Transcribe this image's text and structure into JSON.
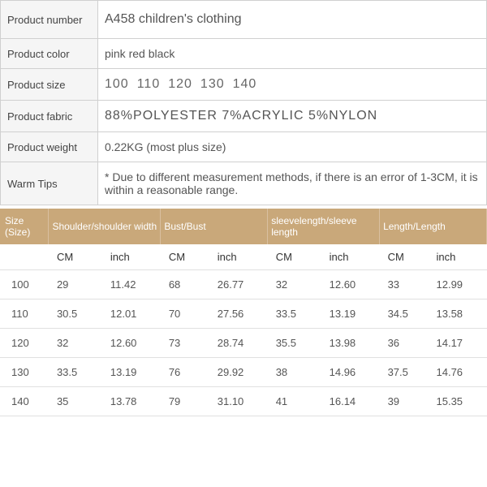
{
  "info": {
    "rows": [
      {
        "label": "Product number",
        "value": "A458 children's clothing",
        "cls": "big"
      },
      {
        "label": "Product color",
        "value": "pink red black",
        "cls": ""
      },
      {
        "label": "Product size",
        "value_list": [
          "100",
          "110",
          "120",
          "130",
          "140"
        ],
        "cls": "sizes big"
      },
      {
        "label": "Product fabric",
        "value": "88%POLYESTER  7%ACRYLIC  5%NYLON",
        "cls": "fabric big"
      },
      {
        "label": "Product weight",
        "value": "0.22KG (most plus size)",
        "cls": ""
      },
      {
        "label": "Warm Tips",
        "value": "* Due to different measurement methods, if there is an error of 1-3CM, it is within a reasonable range.",
        "cls": ""
      }
    ]
  },
  "size_table": {
    "header_bg": "#c9a87a",
    "header_color": "#ffffff",
    "groups": [
      "Size (Size)",
      "Shoulder/shoulder width",
      "Bust/Bust",
      "sleevelength/sleeve length",
      "Length/Length"
    ],
    "unit_row": [
      "",
      "CM",
      "inch",
      "CM",
      "inch",
      "CM",
      "inch",
      "CM",
      "inch"
    ],
    "rows": [
      [
        "100",
        "29",
        "11.42",
        "68",
        "26.77",
        "32",
        "12.60",
        "33",
        "12.99"
      ],
      [
        "110",
        "30.5",
        "12.01",
        "70",
        "27.56",
        "33.5",
        "13.19",
        "34.5",
        "13.58"
      ],
      [
        "120",
        "32",
        "12.60",
        "73",
        "28.74",
        "35.5",
        "13.98",
        "36",
        "14.17"
      ],
      [
        "130",
        "33.5",
        "13.19",
        "76",
        "29.92",
        "38",
        "14.96",
        "37.5",
        "14.76"
      ],
      [
        "140",
        "35",
        "13.78",
        "79",
        "31.10",
        "41",
        "16.14",
        "39",
        "15.35"
      ]
    ],
    "col_widths": [
      "10%",
      "11%",
      "12%",
      "10%",
      "12%",
      "11%",
      "12%",
      "10%",
      "12%"
    ]
  }
}
